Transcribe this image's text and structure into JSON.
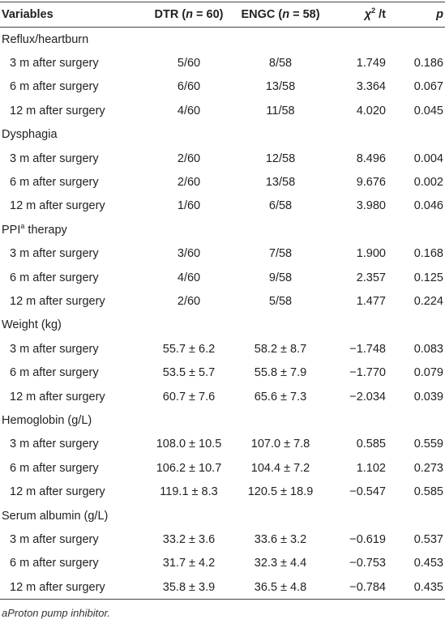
{
  "table": {
    "header": [
      "Variables",
      [
        "DTR (",
        "n",
        " = 60)"
      ],
      [
        "ENGC (",
        "n",
        " = 58)"
      ],
      [
        "χ",
        "2",
        " /t"
      ],
      "p"
    ],
    "groups": [
      {
        "label": "Reflux/heartburn",
        "rows": [
          [
            "3 m after surgery",
            "5/60",
            "8/58",
            "1.749",
            "0.186"
          ],
          [
            "6 m after surgery",
            "6/60",
            "13/58",
            "3.364",
            "0.067"
          ],
          [
            "12 m after surgery",
            "4/60",
            "11/58",
            "4.020",
            "0.045"
          ]
        ]
      },
      {
        "label": "Dysphagia",
        "rows": [
          [
            "3 m after surgery",
            "2/60",
            "12/58",
            "8.496",
            "0.004"
          ],
          [
            "6 m after surgery",
            "2/60",
            "13/58",
            "9.676",
            "0.002"
          ],
          [
            "12 m after surgery",
            "1/60",
            "6/58",
            "3.980",
            "0.046"
          ]
        ]
      },
      {
        "label": [
          "PPI",
          "a",
          " therapy"
        ],
        "rows": [
          [
            "3 m after surgery",
            "3/60",
            "7/58",
            "1.900",
            "0.168"
          ],
          [
            "6 m after surgery",
            "4/60",
            "9/58",
            "2.357",
            "0.125"
          ],
          [
            "12 m after surgery",
            "2/60",
            "5/58",
            "1.477",
            "0.224"
          ]
        ]
      },
      {
        "label": "Weight (kg)",
        "rows": [
          [
            "3 m after surgery",
            "55.7 ± 6.2",
            "58.2 ± 8.7",
            "−1.748",
            "0.083"
          ],
          [
            "6 m after surgery",
            "53.5 ± 5.7",
            "55.8 ± 7.9",
            "−1.770",
            "0.079"
          ],
          [
            "12 m after surgery",
            "60.7 ± 7.6",
            "65.6 ± 7.3",
            "−2.034",
            "0.039"
          ]
        ]
      },
      {
        "label": "Hemoglobin (g/L)",
        "rows": [
          [
            "3 m after surgery",
            "108.0 ± 10.5",
            "107.0 ± 7.8",
            "0.585",
            "0.559"
          ],
          [
            "6 m after surgery",
            "106.2 ± 10.7",
            "104.4 ± 7.2",
            "1.102",
            "0.273"
          ],
          [
            "12 m after surgery",
            "119.1 ± 8.3",
            "120.5 ± 18.9",
            "−0.547",
            "0.585"
          ]
        ]
      },
      {
        "label": "Serum albumin (g/L)",
        "rows": [
          [
            "3 m after surgery",
            "33.2 ± 3.6",
            "33.6 ± 3.2",
            "−0.619",
            "0.537"
          ],
          [
            "6 m after surgery",
            "31.7 ± 4.2",
            "32.3 ± 4.4",
            "−0.753",
            "0.453"
          ],
          [
            "12 m after surgery",
            "35.8 ± 3.9",
            "36.5 ± 4.8",
            "−0.784",
            "0.435"
          ]
        ]
      }
    ],
    "footnote": "aProton pump inhibitor."
  }
}
